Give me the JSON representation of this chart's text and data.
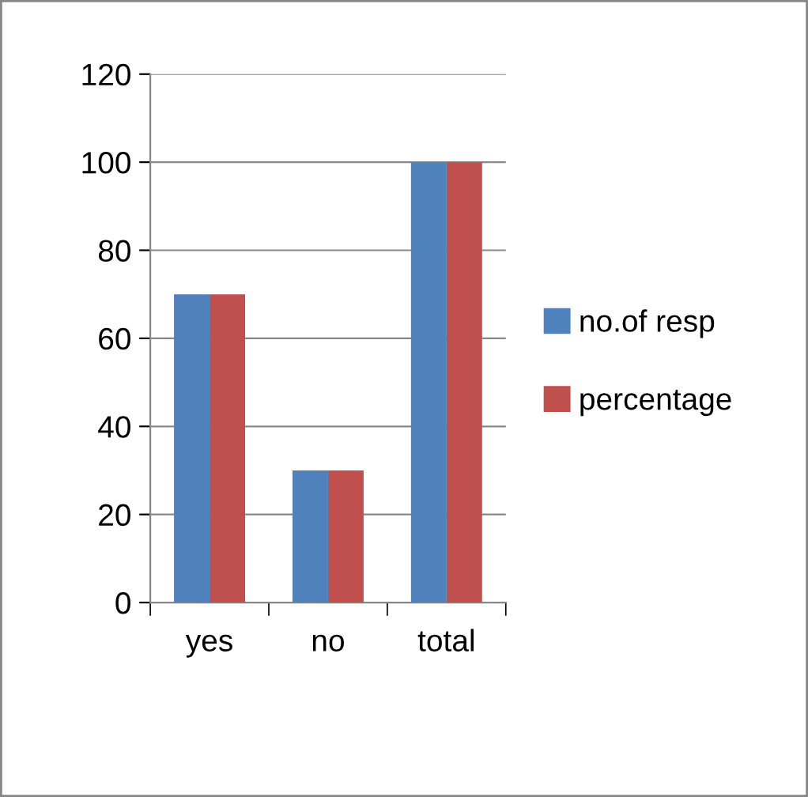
{
  "chart_data": {
    "type": "bar",
    "categories": [
      "yes",
      "no",
      "total"
    ],
    "series": [
      {
        "name": "no.of resp",
        "color": "#4f81bd",
        "values": [
          70,
          30,
          100
        ]
      },
      {
        "name": "percentage",
        "color": "#c0504d",
        "values": [
          70,
          30,
          100
        ]
      }
    ],
    "ylim": [
      0,
      120
    ],
    "yticks": [
      0,
      20,
      40,
      60,
      80,
      100,
      120
    ],
    "grid": "y",
    "legend": "right"
  }
}
